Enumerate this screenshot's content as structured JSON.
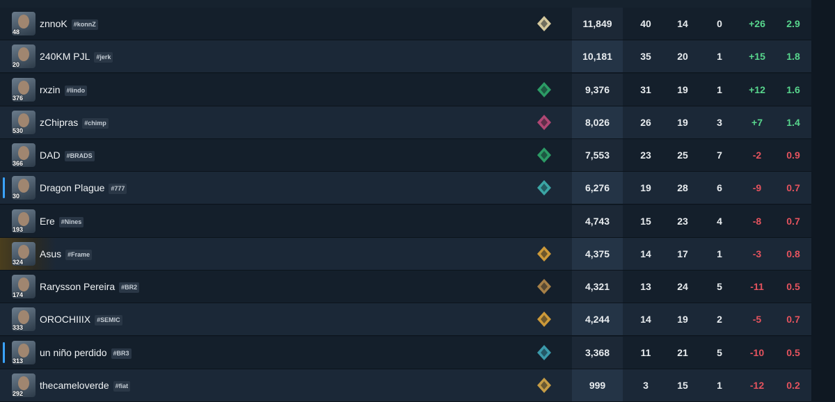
{
  "rows": [
    {
      "name": "znnoK",
      "tag": "#konnZ",
      "level": "48",
      "rank_color": "#e8d9a8",
      "acs": "11,849",
      "k": "40",
      "d": "14",
      "a": "0",
      "diff": "+26",
      "kd": "2.9"
    },
    {
      "name": "240KM PJL",
      "tag": "#jerk",
      "level": "20",
      "rank_color": null,
      "acs": "10,181",
      "k": "35",
      "d": "20",
      "a": "1",
      "diff": "+15",
      "kd": "1.8"
    },
    {
      "name": "rxzin",
      "tag": "#lindo",
      "level": "376",
      "rank_color": "#2fa86b",
      "acs": "9,376",
      "k": "31",
      "d": "19",
      "a": "1",
      "diff": "+12",
      "kd": "1.6"
    },
    {
      "name": "zChipras",
      "tag": "#chimp",
      "level": "530",
      "rank_color": "#c04a7a",
      "acs": "8,026",
      "k": "26",
      "d": "19",
      "a": "3",
      "diff": "+7",
      "kd": "1.4"
    },
    {
      "name": "DAD",
      "tag": "#BRADS",
      "level": "366",
      "rank_color": "#2fa86b",
      "acs": "7,553",
      "k": "23",
      "d": "25",
      "a": "7",
      "diff": "-2",
      "kd": "0.9"
    },
    {
      "name": "Dragon Plague",
      "tag": "#777",
      "level": "30",
      "rank_color": "#3fb3b0",
      "acs": "6,276",
      "k": "19",
      "d": "28",
      "a": "6",
      "diff": "-9",
      "kd": "0.7"
    },
    {
      "name": "Ere",
      "tag": "#Nines",
      "level": "193",
      "rank_color": null,
      "acs": "4,743",
      "k": "15",
      "d": "23",
      "a": "4",
      "diff": "-8",
      "kd": "0.7"
    },
    {
      "name": "Asus",
      "tag": "#Frame",
      "level": "324",
      "rank_color": "#e0a53a",
      "acs": "4,375",
      "k": "14",
      "d": "17",
      "a": "1",
      "diff": "-3",
      "kd": "0.8"
    },
    {
      "name": "Rarysson Pereira",
      "tag": "#BR2",
      "level": "174",
      "rank_color": "#b58a4a",
      "acs": "4,321",
      "k": "13",
      "d": "24",
      "a": "5",
      "diff": "-11",
      "kd": "0.5"
    },
    {
      "name": "OROCHIIIX",
      "tag": "#SEMIC",
      "level": "333",
      "rank_color": "#e0a53a",
      "acs": "4,244",
      "k": "14",
      "d": "19",
      "a": "2",
      "diff": "-5",
      "kd": "0.7"
    },
    {
      "name": "un niño perdido",
      "tag": "#BR3",
      "level": "313",
      "rank_color": "#3fa6b8",
      "acs": "3,368",
      "k": "11",
      "d": "21",
      "a": "5",
      "diff": "-10",
      "kd": "0.5"
    },
    {
      "name": "thecameloverde",
      "tag": "#fiat",
      "level": "292",
      "rank_color": "#d8a848",
      "acs": "999",
      "k": "3",
      "d": "15",
      "a": "1",
      "diff": "-12",
      "kd": "0.2"
    }
  ]
}
